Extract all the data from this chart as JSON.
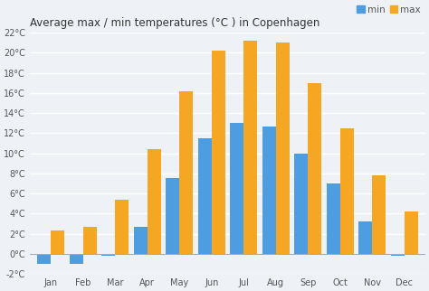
{
  "title": "Average max / min temperatures (°C ) in Copenhagen",
  "months": [
    "Jan",
    "Feb",
    "Mar",
    "Apr",
    "May",
    "Jun",
    "Jul",
    "Aug",
    "Sep",
    "Oct",
    "Nov",
    "Dec"
  ],
  "min_temps": [
    -1,
    -1,
    -0.2,
    2.7,
    7.5,
    11.5,
    13.0,
    12.7,
    10.0,
    7.0,
    3.2,
    -0.2
  ],
  "max_temps": [
    2.3,
    2.7,
    5.4,
    10.4,
    16.2,
    20.2,
    21.2,
    21.0,
    17.0,
    12.5,
    7.8,
    4.2
  ],
  "min_color": "#4d9de0",
  "max_color": "#f5a623",
  "background_color": "#eef2f7",
  "grid_color": "#ffffff",
  "ylim": [
    -2,
    22
  ],
  "yticks": [
    -2,
    0,
    2,
    4,
    6,
    8,
    10,
    12,
    14,
    16,
    18,
    20,
    22
  ],
  "title_fontsize": 8.5,
  "tick_fontsize": 7,
  "legend_fontsize": 7.5
}
